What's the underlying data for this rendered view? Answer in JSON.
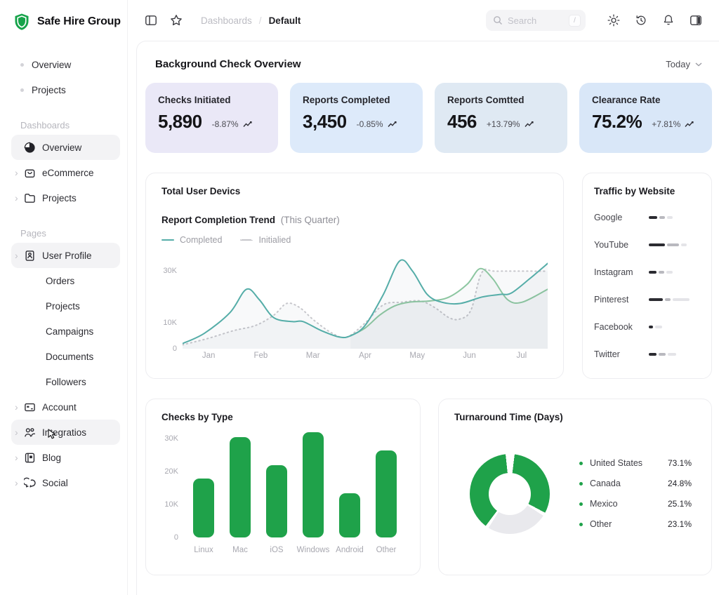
{
  "brand": {
    "name": "Safe Hire Group",
    "accent_color": "#16a34a"
  },
  "sidebar": {
    "top_items": [
      {
        "label": "Overview"
      },
      {
        "label": "Projects"
      }
    ],
    "sections": [
      {
        "title": "Dashboards",
        "items": [
          {
            "label": "Overview",
            "icon": "pie-chart-icon",
            "active": true
          },
          {
            "label": "eCommerce",
            "icon": "shopping-bag-icon",
            "chevron": true
          },
          {
            "label": "Projects",
            "icon": "folder-icon",
            "chevron": true
          }
        ]
      },
      {
        "title": "Pages",
        "items": [
          {
            "label": "User Profile",
            "icon": "id-card-icon",
            "chevron": true,
            "active": true
          },
          {
            "label": "Orders"
          },
          {
            "label": "Projects"
          },
          {
            "label": "Campaigns"
          },
          {
            "label": "Documents"
          },
          {
            "label": "Followers"
          },
          {
            "label": "Account",
            "icon": "credit-card-icon",
            "chevron": true
          },
          {
            "label": "Integratios",
            "icon": "users-icon",
            "chevron": true,
            "active": true,
            "cursor": true
          },
          {
            "label": "Blog",
            "icon": "blog-icon",
            "chevron": true
          },
          {
            "label": "Social",
            "icon": "chat-bubbles-icon",
            "chevron": true
          }
        ]
      }
    ]
  },
  "topbar": {
    "breadcrumb": [
      "Dashboards",
      "Default"
    ],
    "breadcrumb_separator": "/",
    "search": {
      "placeholder": "Search",
      "shortcut": "/"
    }
  },
  "page": {
    "title": "Background Check Overview",
    "range_label": "Today"
  },
  "stat_cards": [
    {
      "title": "Checks Initiated",
      "value": "5,890",
      "delta": "-8.87%",
      "bg": "#eae8f7"
    },
    {
      "title": "Reports Completed",
      "value": "3,450",
      "delta": "-0.85%",
      "bg": "#ddeafa"
    },
    {
      "title": "Reports Comtted",
      "value": "456",
      "delta": "+13.79%",
      "bg": "#dfe9f3"
    },
    {
      "title": "Clearance Rate",
      "value": "75.2%",
      "delta": "+7.81%",
      "bg": "#d9e7f8"
    }
  ],
  "chart_data": [
    {
      "id": "completion-trend",
      "type": "line",
      "card_title": "Total User Devics",
      "title": "Report Completion Trend",
      "subtitle": "(This Quarter)",
      "x_ticks": [
        "Jan",
        "Feb",
        "Mar",
        "Apr",
        "May",
        "Jun",
        "Jul"
      ],
      "y_ticks": [
        {
          "label": "30K",
          "v": 30
        },
        {
          "label": "10K",
          "v": 10
        },
        {
          "label": "0",
          "v": 0
        }
      ],
      "ylim": [
        0,
        38
      ],
      "unit": "K",
      "grid": false,
      "legend": [
        {
          "name": "Completed",
          "color": "#55ada8",
          "style": "solid"
        },
        {
          "name": "Initialied",
          "color": "#c6c6cb",
          "style": "dashed"
        }
      ],
      "series": [
        {
          "name": "Initialied",
          "color": "#c7c7cc",
          "style": "dashed",
          "points": [
            [
              0,
              1.5
            ],
            [
              0.07,
              4
            ],
            [
              0.14,
              7
            ],
            [
              0.2,
              9
            ],
            [
              0.25,
              13
            ],
            [
              0.285,
              17.5
            ],
            [
              0.32,
              16
            ],
            [
              0.36,
              11
            ],
            [
              0.41,
              6
            ],
            [
              0.45,
              4.5
            ],
            [
              0.5,
              10
            ],
            [
              0.55,
              17
            ],
            [
              0.6,
              18
            ],
            [
              0.65,
              18.5
            ],
            [
              0.69,
              16
            ],
            [
              0.73,
              12
            ],
            [
              0.76,
              11.5
            ],
            [
              0.79,
              15
            ],
            [
              0.82,
              29.5
            ],
            [
              0.86,
              30
            ],
            [
              1,
              30
            ]
          ]
        },
        {
          "name": "Completed (secondary)",
          "color": "#8cc6a0",
          "style": "solid",
          "points": [
            [
              0.46,
              5
            ],
            [
              0.5,
              8
            ],
            [
              0.54,
              13
            ],
            [
              0.58,
              16.5
            ],
            [
              0.62,
              18
            ],
            [
              0.68,
              18.5
            ],
            [
              0.73,
              20
            ],
            [
              0.78,
              25
            ],
            [
              0.815,
              31
            ],
            [
              0.85,
              27
            ],
            [
              0.89,
              19
            ],
            [
              0.93,
              18
            ],
            [
              1,
              23
            ]
          ]
        },
        {
          "name": "Completed",
          "color": "#55ada8",
          "style": "solid",
          "points": [
            [
              0,
              2
            ],
            [
              0.06,
              6
            ],
            [
              0.13,
              14
            ],
            [
              0.175,
              23
            ],
            [
              0.21,
              19
            ],
            [
              0.25,
              12
            ],
            [
              0.3,
              10.5
            ],
            [
              0.33,
              10.5
            ],
            [
              0.38,
              7
            ],
            [
              0.43,
              4.5
            ],
            [
              0.46,
              5
            ],
            [
              0.5,
              9
            ],
            [
              0.55,
              21
            ],
            [
              0.595,
              34
            ],
            [
              0.63,
              30
            ],
            [
              0.67,
              21
            ],
            [
              0.71,
              18
            ],
            [
              0.76,
              17.5
            ],
            [
              0.82,
              20
            ],
            [
              0.87,
              21
            ],
            [
              0.9,
              21.5
            ],
            [
              0.95,
              27
            ],
            [
              1,
              33
            ]
          ]
        }
      ]
    },
    {
      "id": "traffic-by-website",
      "type": "bar",
      "title": "Traffic by Website",
      "orientation": "horizontal",
      "segment_colors": [
        "#2b2b31",
        "#b9b9bf",
        "#e4e4e8"
      ],
      "rows": [
        {
          "label": "Google",
          "segments": [
            12,
            8,
            8
          ]
        },
        {
          "label": "YouTube",
          "segments": [
            23,
            17,
            8
          ]
        },
        {
          "label": "Instagram",
          "segments": [
            11,
            8,
            9
          ]
        },
        {
          "label": "Pinterest",
          "segments": [
            20,
            8,
            24
          ]
        },
        {
          "label": "Facebook",
          "segments": [
            6,
            0,
            10
          ]
        },
        {
          "label": "Twitter",
          "segments": [
            11,
            10,
            12
          ]
        }
      ]
    },
    {
      "id": "checks-by-type",
      "type": "bar",
      "title": "Checks by Type",
      "categories": [
        "Linux",
        "Mac",
        "iOS",
        "Windows",
        "Android",
        "Other"
      ],
      "values": [
        18,
        30.5,
        22,
        32,
        13.5,
        26.5
      ],
      "unit": "K",
      "y_ticks": [
        {
          "label": "30K",
          "v": 30
        },
        {
          "label": "20K",
          "v": 20
        },
        {
          "label": "10K",
          "v": 10
        },
        {
          "label": "0",
          "v": 0
        }
      ],
      "ylim": [
        0,
        32
      ],
      "bar_color": "#1fa24a"
    },
    {
      "id": "turnaround-time",
      "type": "donut",
      "title": "Turnaround Time (Days)",
      "segments": [
        {
          "color": "#1fa24a",
          "from": 7,
          "to": 118
        },
        {
          "color": "#e9e9ed",
          "from": 123,
          "to": 212
        },
        {
          "color": "#1fa24a",
          "from": 217,
          "to": 354
        }
      ],
      "legend": [
        {
          "label": "United States",
          "value": "73.1%",
          "dot_color": "#1fa24a"
        },
        {
          "label": "Canada",
          "value": "24.8%",
          "dot_color": "#1fa24a"
        },
        {
          "label": "Mexico",
          "value": "25.1%",
          "dot_color": "#1fa24a"
        },
        {
          "label": "Other",
          "value": "23.1%",
          "dot_color": "#1fa24a"
        }
      ]
    }
  ]
}
